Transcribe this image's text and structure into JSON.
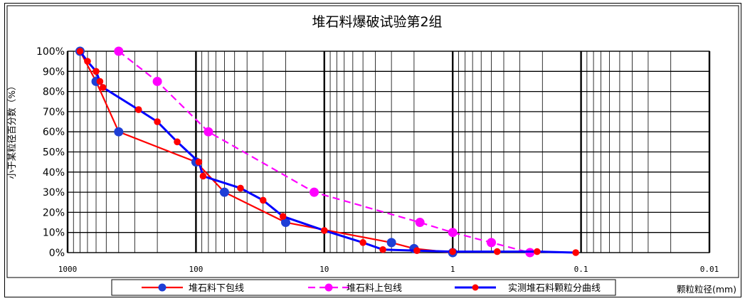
{
  "chart_data": {
    "type": "line",
    "title": "堆石料爆破试验第2组",
    "xlabel": "颗粒粒径(mm)",
    "ylabel": "小于某粒径百分数（%）",
    "x_scale": "log",
    "x_reversed": true,
    "xlim": [
      1000,
      0.01
    ],
    "ylim": [
      0,
      100
    ],
    "x_tick_labels": [
      "1000",
      "100",
      "10",
      "1",
      "0.1",
      "0.01"
    ],
    "y_tick_labels": [
      "0%",
      "10%",
      "20%",
      "30%",
      "40%",
      "50%",
      "60%",
      "70%",
      "80%",
      "90%",
      "100%"
    ],
    "grid": true,
    "legend_position": "bottom",
    "series": [
      {
        "name": "堆石料下包线",
        "color": "#ff0000",
        "marker_color": "#1f3fd6",
        "dash": false,
        "x": [
          800,
          600,
          400,
          100,
          60,
          20,
          3,
          2,
          1
        ],
        "y": [
          100,
          85,
          60,
          45,
          30,
          15,
          5,
          2,
          0
        ]
      },
      {
        "name": "堆石料上包线",
        "color": "#ff00ff",
        "marker_color": "#ff00ff",
        "dash": true,
        "x": [
          400,
          200,
          80,
          12,
          1.8,
          1,
          0.5,
          0.25
        ],
        "y": [
          100,
          85,
          60,
          30,
          15,
          10,
          5,
          0
        ]
      },
      {
        "name": "实测堆石料颗粒分曲线",
        "color": "#0000ff",
        "marker_color": "#ff0000",
        "dash": false,
        "x": [
          800,
          700,
          600,
          560,
          530,
          280,
          200,
          140,
          95,
          88,
          45,
          30,
          21,
          10,
          5,
          3.5,
          1.9,
          1.0,
          0.45,
          0.22,
          0.11
        ],
        "y": [
          100,
          95,
          90,
          85,
          82,
          71,
          65,
          55,
          45,
          38,
          32,
          26,
          18,
          11,
          5,
          1.5,
          1,
          0.5,
          0.5,
          0.5,
          0
        ]
      }
    ]
  }
}
